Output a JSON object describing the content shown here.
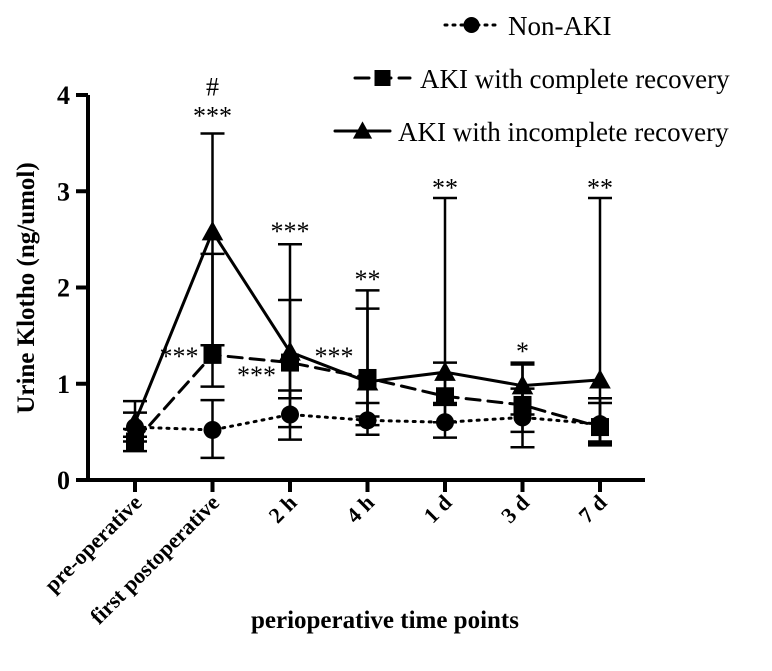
{
  "chart_data": {
    "type": "line",
    "xlabel": "perioperative time points",
    "ylabel": "Urine Klotho (ng/umol)",
    "ylim": [
      0,
      4
    ],
    "yticks": [
      0,
      1,
      2,
      3,
      4
    ],
    "categories": [
      "pre-operative",
      "first postoperative",
      "2 h",
      "4 h",
      "1 d",
      "3 d",
      "7 d"
    ],
    "legend_position": "top-right",
    "series": [
      {
        "name": "Non-AKI",
        "line_style": "dotted",
        "marker": "circle",
        "values": [
          0.55,
          0.52,
          0.68,
          0.62,
          0.6,
          0.65,
          0.58
        ],
        "error_low": [
          0.45,
          0.23,
          0.42,
          0.47,
          0.44,
          0.34,
          0.36
        ],
        "error_high": [
          0.7,
          0.83,
          0.93,
          0.8,
          0.78,
          0.95,
          0.8
        ]
      },
      {
        "name": "AKI with complete recovery",
        "line_style": "dashed",
        "marker": "square",
        "values": [
          0.4,
          1.3,
          1.22,
          1.06,
          0.87,
          0.78,
          0.55
        ],
        "error_low": [
          0.3,
          0.97,
          0.55,
          0.57,
          0.6,
          0.5,
          0.4
        ],
        "error_high": [
          0.53,
          2.35,
          1.87,
          1.78,
          1.22,
          1.2,
          0.85
        ]
      },
      {
        "name": "AKI with incomplete recovery",
        "line_style": "solid",
        "marker": "triangle",
        "values": [
          0.6,
          2.58,
          1.33,
          1.02,
          1.12,
          0.98,
          1.04
        ],
        "error_low": [
          0.4,
          1.4,
          0.85,
          0.66,
          0.8,
          0.68,
          0.38
        ],
        "error_high": [
          0.82,
          3.6,
          2.45,
          1.97,
          2.93,
          1.22,
          2.93
        ]
      }
    ],
    "annotations": [
      {
        "text": "#",
        "category": "first postoperative",
        "y": 4.1
      },
      {
        "text": "***",
        "category": "first postoperative",
        "y": 3.8
      },
      {
        "text": "***",
        "category": "2 h",
        "y": 2.6
      },
      {
        "text": "**",
        "category": "4 h",
        "y": 2.1
      },
      {
        "text": "**",
        "category": "1 d",
        "y": 3.05
      },
      {
        "text": "*",
        "category": "3 d",
        "y": 1.35
      },
      {
        "text": "**",
        "category": "7 d",
        "y": 3.05
      },
      {
        "text": "***",
        "category": "first postoperative",
        "y": 1.3,
        "side": "left"
      },
      {
        "text": "***",
        "category": "2 h",
        "y": 1.1,
        "side": "left"
      },
      {
        "text": "***",
        "category": "4 h",
        "y": 1.3,
        "side": "left"
      }
    ]
  }
}
